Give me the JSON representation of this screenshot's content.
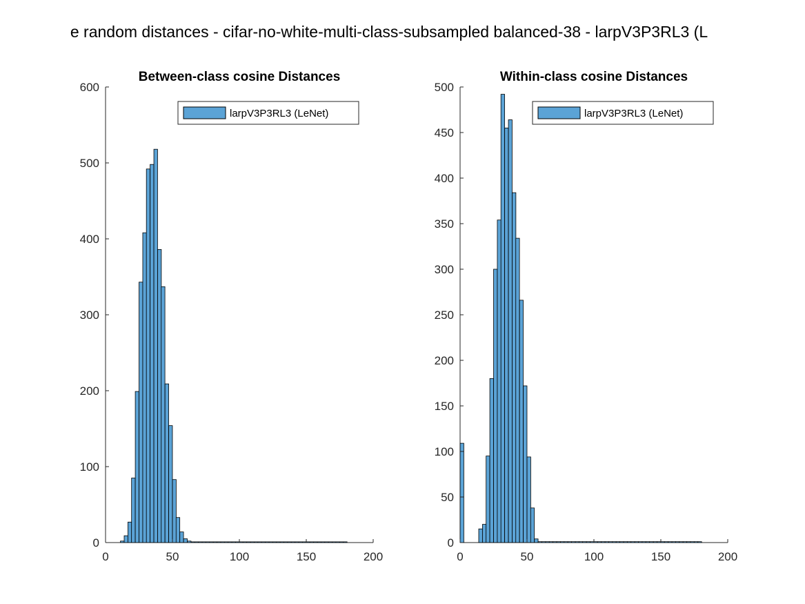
{
  "figure_title": "e random distances - cifar-no-white-multi-class-subsampled balanced-38 - larpV3P3RL3 (L",
  "colors": {
    "bar_fill": "#5ba3d6",
    "bar_edge": "#000000",
    "axis": "#262626"
  },
  "chart_data": [
    {
      "type": "bar",
      "title": "Between-class cosine Distances",
      "legend": {
        "label": "larpV3P3RL3 (LeNet)",
        "placement": "top-right"
      },
      "xlim": [
        0,
        200
      ],
      "ylim": [
        0,
        600
      ],
      "xticks": [
        0,
        50,
        100,
        150,
        200
      ],
      "yticks": [
        0,
        100,
        200,
        300,
        400,
        500,
        600
      ],
      "bin_width": 2.77,
      "x": [
        12.5,
        15.3,
        18.1,
        20.8,
        23.6,
        26.4,
        29.2,
        31.9,
        34.7,
        37.5,
        40.3,
        43.0,
        45.8,
        48.6,
        51.4,
        54.1,
        56.9,
        59.7,
        62.5,
        65.3,
        68.0,
        70.8,
        73.6,
        76.4,
        79.1,
        81.9,
        84.7,
        87.5,
        90.2,
        93.0,
        95.8,
        98.6,
        101.3,
        104.1,
        106.9,
        109.7,
        112.5,
        115.2,
        118.0,
        120.8,
        123.6,
        126.3,
        129.1,
        131.9,
        134.7,
        137.4,
        140.2,
        143.0,
        145.8,
        148.5,
        151.3,
        154.1,
        156.9,
        159.7,
        162.4,
        165.2,
        168.0,
        170.8,
        173.5,
        176.3,
        179.1
      ],
      "values": [
        2,
        9,
        27,
        85,
        199,
        343,
        408,
        492,
        498,
        518,
        386,
        337,
        209,
        154,
        83,
        33,
        14,
        5,
        2,
        1,
        1,
        1,
        1,
        1,
        1,
        1,
        1,
        1,
        1,
        1,
        1,
        1,
        1,
        1,
        1,
        1,
        1,
        1,
        1,
        1,
        1,
        1,
        1,
        1,
        1,
        1,
        1,
        1,
        1,
        1,
        1,
        1,
        1,
        1,
        1,
        1,
        1,
        1,
        1,
        1,
        1
      ]
    },
    {
      "type": "bar",
      "title": "Within-class cosine Distances",
      "legend": {
        "label": "larpV3P3RL3 (LeNet)",
        "placement": "top-right"
      },
      "xlim": [
        0,
        200
      ],
      "ylim": [
        0,
        500
      ],
      "xticks": [
        0,
        50,
        100,
        150,
        200
      ],
      "yticks": [
        0,
        50,
        100,
        150,
        200,
        250,
        300,
        350,
        400,
        450,
        500
      ],
      "bin_width": 2.77,
      "x": [
        1.4,
        4.2,
        6.9,
        9.7,
        12.5,
        15.3,
        18.1,
        20.8,
        23.6,
        26.4,
        29.2,
        31.9,
        34.7,
        37.5,
        40.3,
        43.0,
        45.8,
        48.6,
        51.4,
        54.1,
        56.9,
        59.7,
        62.5,
        65.3,
        68.0,
        70.8,
        73.6,
        76.4,
        79.1,
        81.9,
        84.7,
        87.5,
        90.2,
        93.0,
        95.8,
        98.6,
        101.3,
        104.1,
        106.9,
        109.7,
        112.5,
        115.2,
        118.0,
        120.8,
        123.6,
        126.3,
        129.1,
        131.9,
        134.7,
        137.4,
        140.2,
        143.0,
        145.8,
        148.5,
        151.3,
        154.1,
        156.9,
        159.7,
        162.4,
        165.2,
        168.0,
        170.8,
        173.5,
        176.3,
        179.1
      ],
      "values": [
        109,
        0,
        0,
        0,
        0,
        15,
        20,
        95,
        180,
        300,
        354,
        492,
        455,
        464,
        384,
        334,
        266,
        172,
        94,
        38,
        4,
        1,
        1,
        1,
        1,
        1,
        1,
        1,
        1,
        1,
        1,
        1,
        1,
        1,
        1,
        1,
        1,
        1,
        1,
        1,
        1,
        1,
        1,
        1,
        1,
        1,
        1,
        1,
        1,
        1,
        1,
        1,
        1,
        1,
        1,
        1,
        1,
        1,
        1,
        1,
        1,
        1,
        1,
        1,
        1
      ]
    }
  ]
}
